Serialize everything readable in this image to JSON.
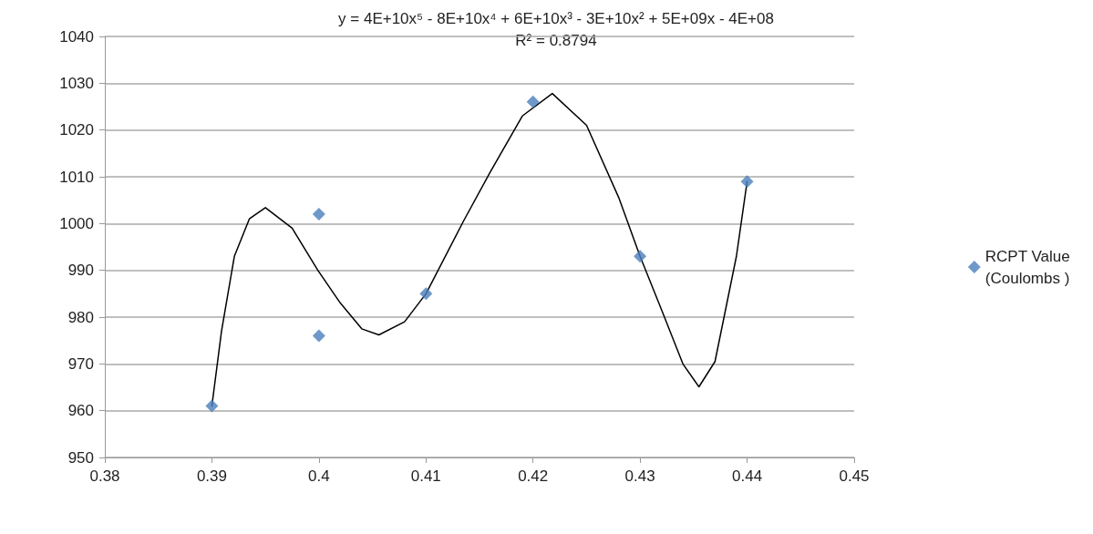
{
  "chart_data": {
    "type": "scatter",
    "annotations": [
      "y = 4E+10x⁵ - 8E+10x⁴ + 6E+10x³ - 3E+10x² + 5E+09x - 4E+08",
      "R² = 0.8794"
    ],
    "xlim": [
      0.38,
      0.45
    ],
    "xticks": [
      0.38,
      0.39,
      0.4,
      0.41,
      0.42,
      0.43,
      0.44,
      0.45
    ],
    "ylim": [
      950,
      1040
    ],
    "yticks": [
      950,
      960,
      970,
      980,
      990,
      1000,
      1010,
      1020,
      1030,
      1040
    ],
    "grid": "y",
    "legend": "right",
    "marker": "diamond",
    "series": [
      {
        "name": "RCPT Value (Coulombs )",
        "color": "#4a7ebb",
        "x": [
          0.39,
          0.4,
          0.4,
          0.41,
          0.42,
          0.43,
          0.44
        ],
        "values": [
          961,
          1002,
          976,
          985,
          1026,
          993,
          1009
        ]
      },
      {
        "type": "line",
        "color": "#000000",
        "marker": "none",
        "line_style": "solid",
        "x": [
          0.39,
          0.3909,
          0.3921,
          0.3935,
          0.395,
          0.3975,
          0.3999,
          0.402,
          0.404,
          0.4056,
          0.408,
          0.41,
          0.4135,
          0.416,
          0.419,
          0.4218,
          0.425,
          0.428,
          0.43,
          0.432,
          0.434,
          0.4355,
          0.437,
          0.439,
          0.44
        ],
        "values": [
          961,
          977,
          993,
          1001,
          1003.4,
          999,
          990,
          983,
          977.5,
          976.2,
          979,
          985,
          1000.5,
          1011,
          1023,
          1027.8,
          1021,
          1005.6,
          993,
          981.6,
          970,
          965.1,
          970.5,
          993,
          1009
        ]
      }
    ]
  }
}
